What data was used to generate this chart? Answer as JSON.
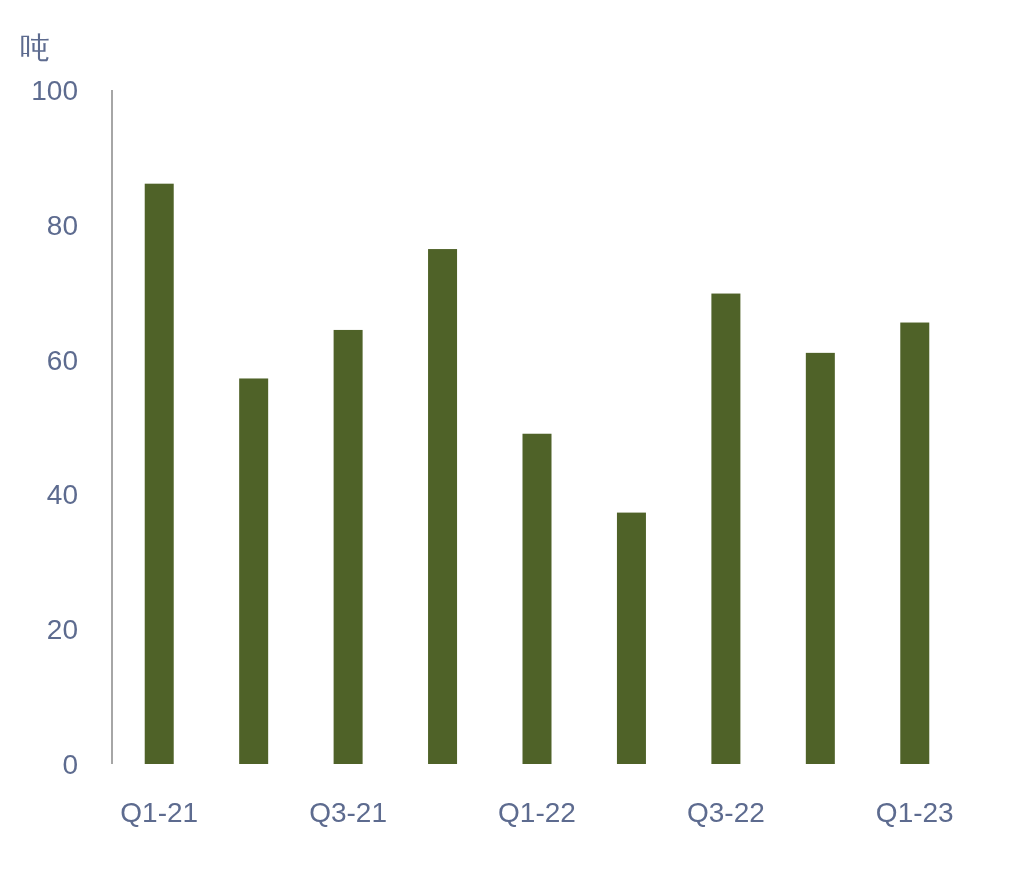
{
  "chart_data": {
    "type": "bar",
    "ylabel": "吨",
    "categories": [
      "Q1-21",
      null,
      "Q3-21",
      null,
      "Q1-22",
      null,
      "Q3-22",
      null,
      "Q1-23"
    ],
    "values": [
      86.1,
      57.2,
      64.4,
      76.4,
      49.0,
      37.3,
      69.8,
      61.0,
      65.5
    ],
    "color": "#4f6228",
    "ylim": [
      0,
      100
    ],
    "yticks": [
      0,
      20,
      40,
      60,
      80,
      100
    ]
  }
}
